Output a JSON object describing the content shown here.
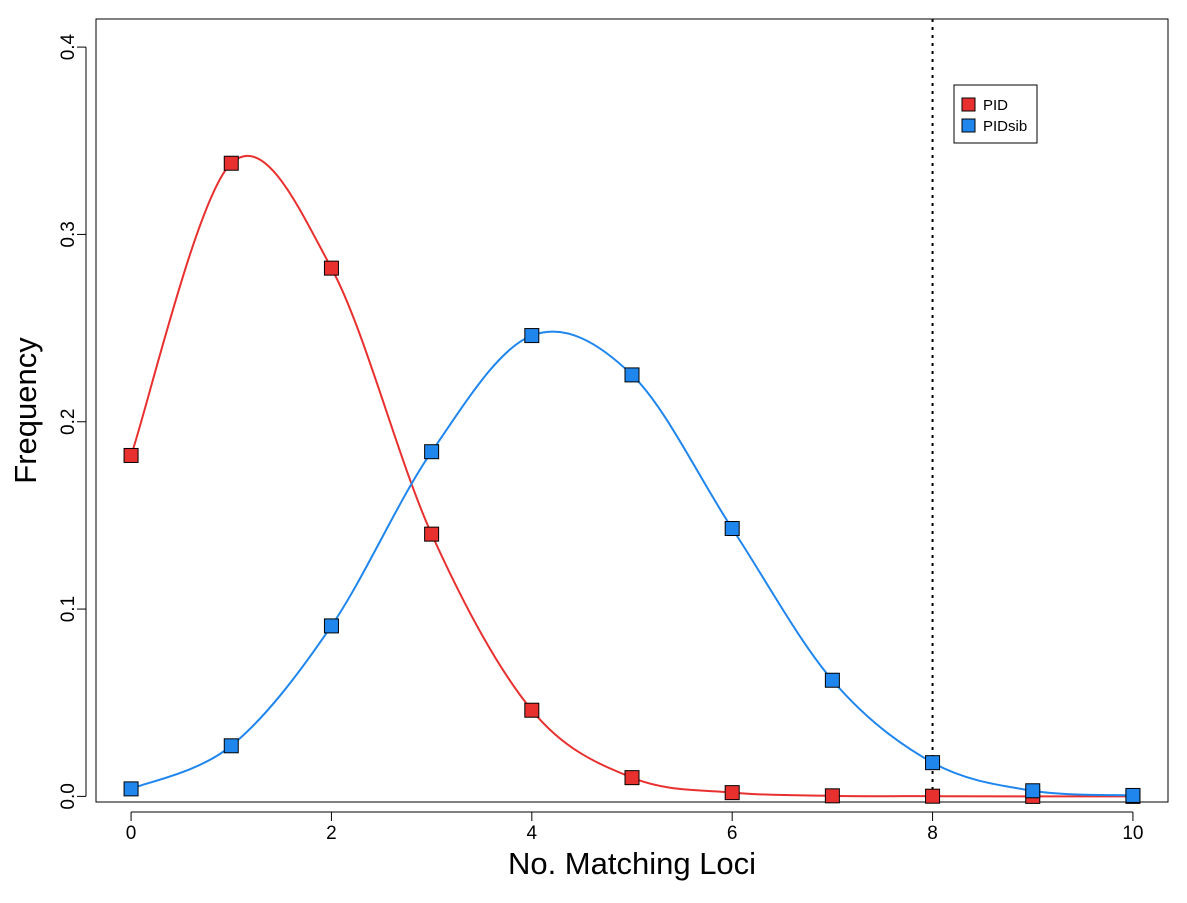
{
  "chart_data": {
    "type": "line",
    "title": "",
    "xlabel": "No. Matching Loci",
    "ylabel": "Frequency",
    "xlim": [
      -0.35,
      10.35
    ],
    "ylim": [
      -0.003,
      0.415
    ],
    "x_ticks": [
      0,
      2,
      4,
      6,
      8,
      10
    ],
    "x_tick_labels": [
      "0",
      "2",
      "4",
      "6",
      "8",
      "10"
    ],
    "y_ticks": [
      0.0,
      0.1,
      0.2,
      0.3,
      0.4
    ],
    "y_tick_labels": [
      "0.0",
      "0.1",
      "0.2",
      "0.3",
      "0.4"
    ],
    "grid": false,
    "legend_position": "top-right",
    "reference_line": {
      "axis": "x",
      "value": 8,
      "style": "dotted",
      "color": "#000000"
    },
    "x": [
      0,
      1,
      2,
      3,
      4,
      5,
      6,
      7,
      8,
      9,
      10
    ],
    "series": [
      {
        "name": "PID",
        "color": "#e8302f",
        "values": [
          0.182,
          0.338,
          0.282,
          0.14,
          0.046,
          0.01,
          0.002,
          0.0003,
          0.0001,
          0.0,
          0.0
        ]
      },
      {
        "name": "PIDsib",
        "color": "#1f86ee",
        "values": [
          0.004,
          0.027,
          0.091,
          0.184,
          0.246,
          0.225,
          0.143,
          0.062,
          0.018,
          0.003,
          0.0005
        ]
      }
    ]
  }
}
